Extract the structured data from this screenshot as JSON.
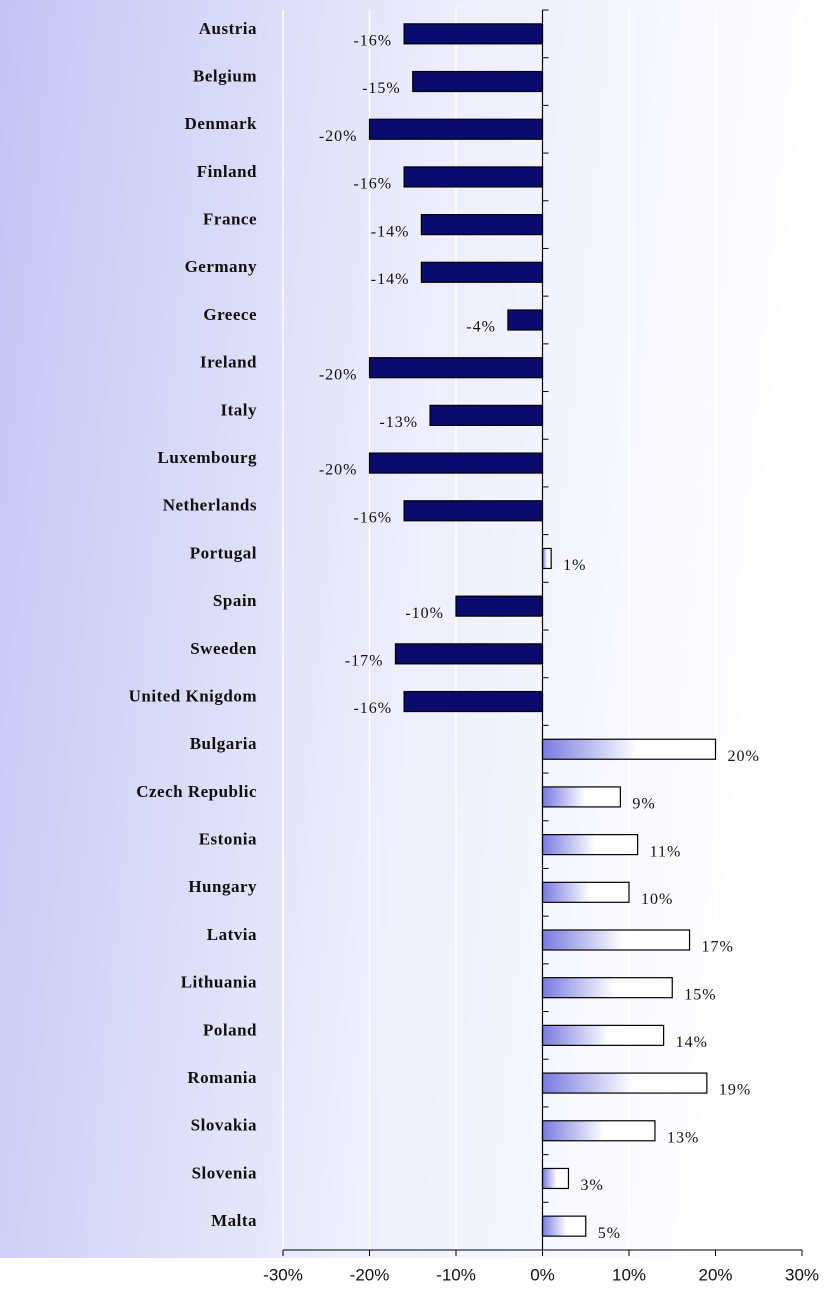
{
  "chart_data": {
    "type": "bar",
    "orientation": "horizontal",
    "categories": [
      "Austria",
      "Belgium",
      "Denmark",
      "Finland",
      "France",
      "Germany",
      "Greece",
      "Ireland",
      "Italy",
      "Luxembourg",
      "Netherlands",
      "Portugal",
      "Spain",
      "Sweeden",
      "United Knigdom",
      "Bulgaria",
      "Czech Republic",
      "Estonia",
      "Hungary",
      "Latvia",
      "Lithuania",
      "Poland",
      "Romania",
      "Slovakia",
      "Slovenia",
      "Malta"
    ],
    "values": [
      -16,
      -15,
      -20,
      -16,
      -14,
      -14,
      -4,
      -20,
      -13,
      -20,
      -16,
      1,
      -10,
      -17,
      -16,
      20,
      9,
      11,
      10,
      17,
      15,
      14,
      19,
      13,
      3,
      5
    ],
    "value_labels": [
      "-16%",
      "-15%",
      "-20%",
      "-16%",
      "-14%",
      "-14%",
      "-4%",
      "-20%",
      "-13%",
      "-20%",
      "-16%",
      "1%",
      "-10%",
      "-17%",
      "-16%",
      "20%",
      "9%",
      "11%",
      "10%",
      "17%",
      "15%",
      "14%",
      "19%",
      "13%",
      "3%",
      "5%"
    ],
    "negative_color": "#0b0b6e",
    "positive_color": "#ffffff",
    "xlim": [
      -30,
      30
    ],
    "xticks": [
      {
        "value": -30,
        "label": "-30%"
      },
      {
        "value": -20,
        "label": "-20%"
      },
      {
        "value": -10,
        "label": "-10%"
      },
      {
        "value": 0,
        "label": "0%"
      },
      {
        "value": 10,
        "label": "10%"
      },
      {
        "value": 20,
        "label": "20%"
      },
      {
        "value": 30,
        "label": "30%"
      }
    ],
    "grid": true
  }
}
